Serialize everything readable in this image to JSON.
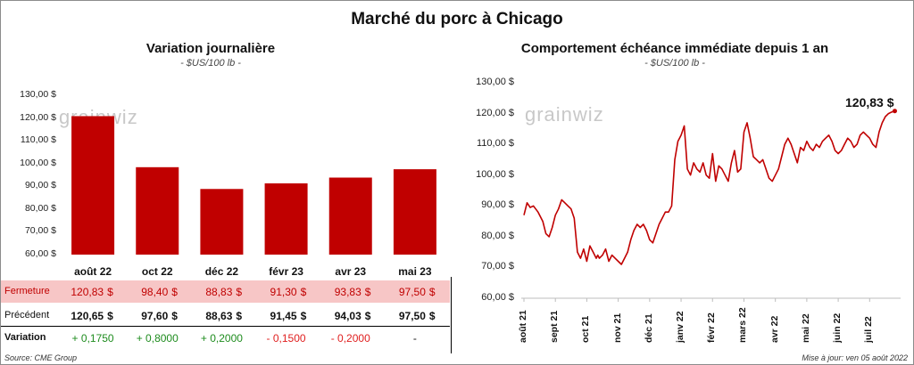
{
  "title": "Marché du porc à Chicago",
  "footer": {
    "source": "Source: CME Group",
    "updated": "Mise à jour: ven 05 août 2022"
  },
  "watermark": "grainwiz",
  "colors": {
    "bar": "#c00000",
    "line": "#c00000",
    "pos": "#1e8c1e",
    "neg": "#e02020",
    "fermeture_bg": "#f7c6c6"
  },
  "rows": {
    "fermeture": "Fermeture",
    "precedent": "Précédent",
    "variation": "Variation",
    "currency": "$"
  },
  "chart_data": [
    {
      "type": "bar",
      "title": "Variation journalière",
      "subtitle": "- $US/100 lb -",
      "categories": [
        "août 22",
        "oct 22",
        "déc 22",
        "févr 23",
        "avr 23",
        "mai 23"
      ],
      "values": [
        120.83,
        98.4,
        88.83,
        91.3,
        93.83,
        97.5
      ],
      "fermeture": [
        "120,83",
        "98,40",
        "88,83",
        "91,30",
        "93,83",
        "97,50"
      ],
      "precedent": [
        "120,65",
        "97,60",
        "88,63",
        "91,45",
        "94,03",
        "97,50"
      ],
      "variation": [
        "+ 0,1750",
        "+ 0,8000",
        "+ 0,2000",
        "- 0,1500",
        "- 0,2000",
        "-"
      ],
      "ylim": [
        60,
        130
      ],
      "yticks": [
        "60,00 $",
        "70,00 $",
        "80,00 $",
        "90,00 $",
        "100,00 $",
        "110,00 $",
        "120,00 $",
        "130,00 $"
      ]
    },
    {
      "type": "line",
      "title": "Comportement  échéance immédiate depuis 1 an",
      "subtitle": "- $US/100 lb -",
      "ylim": [
        60,
        130
      ],
      "yticks": [
        "60,00 $",
        "70,00 $",
        "80,00 $",
        "90,00 $",
        "100,00 $",
        "110,00 $",
        "120,00 $",
        "130,00 $"
      ],
      "xticks": [
        "août 21",
        "sept 21",
        "oct 21",
        "nov 21",
        "déc 21",
        "janv 22",
        "févr 22",
        "mars 22",
        "avr 22",
        "mai 22",
        "juin 22",
        "juil 22"
      ],
      "last_label": "120,83 $",
      "series": [
        {
          "x": [
            0,
            0.1,
            0.2,
            0.3,
            0.45,
            0.6,
            0.7,
            0.8,
            0.9,
            1.0,
            1.1,
            1.2,
            1.3,
            1.4,
            1.5,
            1.6,
            1.7,
            1.8,
            1.9,
            2.0,
            2.1,
            2.2,
            2.3,
            2.35,
            2.4,
            2.5,
            2.6,
            2.7,
            2.8,
            2.9,
            3.0,
            3.1,
            3.2,
            3.3,
            3.4,
            3.5,
            3.6,
            3.7,
            3.8,
            3.9,
            4.0,
            4.1,
            4.2,
            4.3,
            4.4,
            4.5,
            4.6,
            4.7,
            4.8,
            4.9,
            5.0,
            5.1,
            5.2,
            5.3,
            5.4,
            5.5,
            5.6,
            5.7,
            5.8,
            5.9,
            6.0,
            6.1,
            6.2,
            6.3,
            6.4,
            6.5,
            6.6,
            6.7,
            6.8,
            6.9,
            7.0,
            7.1,
            7.2,
            7.3,
            7.4,
            7.5,
            7.6,
            7.7,
            7.8,
            7.9,
            8.0,
            8.1,
            8.2,
            8.3,
            8.4,
            8.5,
            8.6,
            8.7,
            8.8,
            8.9,
            9.0,
            9.1,
            9.2,
            9.3,
            9.4,
            9.5,
            9.6,
            9.7,
            9.8,
            9.9,
            10.0,
            10.1,
            10.2,
            10.3,
            10.4,
            10.5,
            10.6,
            10.7,
            10.8,
            10.9,
            11.0,
            11.1,
            11.2,
            11.3,
            11.4,
            11.5,
            11.6,
            11.7,
            11.8
          ],
          "values": [
            87,
            91,
            89.5,
            90,
            88,
            85,
            81,
            80,
            83,
            87,
            89,
            92,
            91,
            90,
            89,
            86,
            75,
            73,
            76,
            72,
            77,
            75,
            73,
            74,
            73,
            74,
            76,
            72,
            74,
            73,
            72,
            71,
            73,
            75,
            79,
            82,
            84,
            83,
            84,
            82,
            79,
            78,
            81,
            84,
            86,
            88,
            88,
            90,
            105,
            111,
            113,
            116,
            102,
            100,
            104,
            102,
            101,
            104,
            100,
            99,
            107,
            98,
            103,
            102,
            100,
            98,
            104,
            108,
            101,
            102,
            114,
            117,
            112,
            106,
            105,
            104,
            105,
            102,
            99,
            98,
            100,
            102,
            106,
            110,
            112,
            110,
            107,
            104,
            109,
            108,
            111,
            109,
            108,
            110,
            109,
            111,
            112,
            113,
            111,
            108,
            107,
            108,
            110,
            112,
            111,
            109,
            110,
            113,
            114,
            113,
            112,
            110,
            109,
            114,
            117,
            119,
            120,
            120.5,
            120.83
          ]
        }
      ]
    }
  ]
}
